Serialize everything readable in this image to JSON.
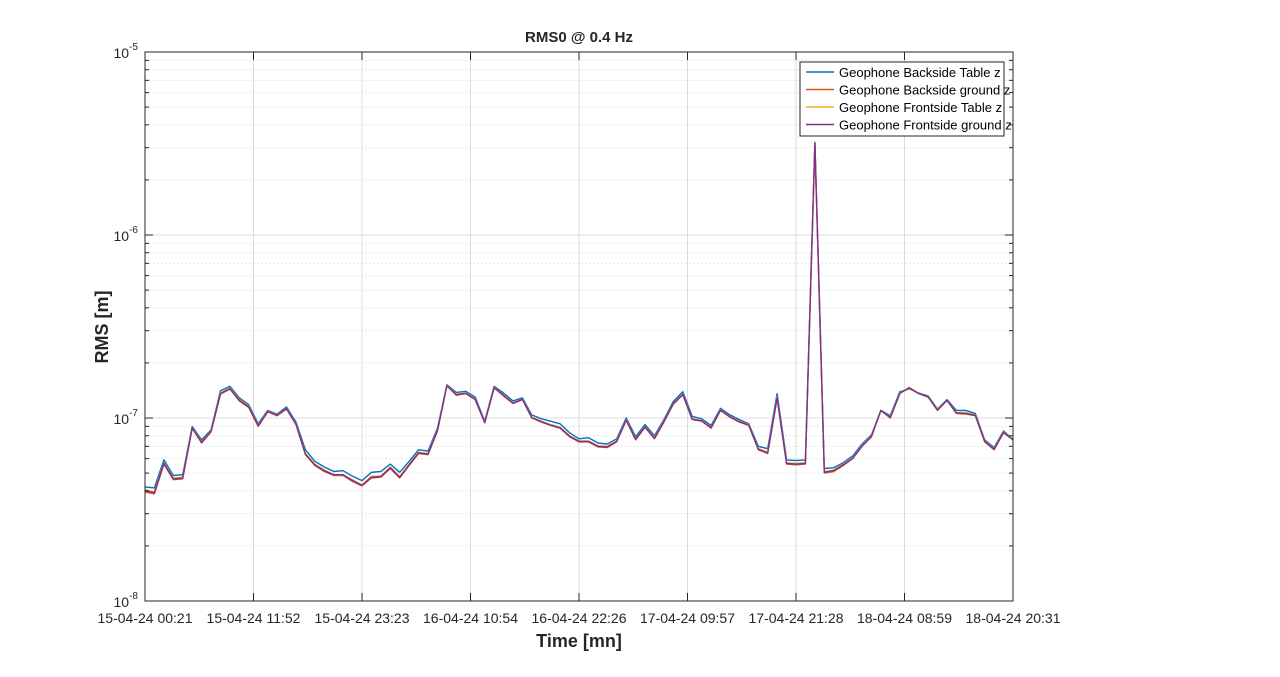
{
  "chart_data": {
    "type": "line",
    "title": "RMS0 @ 0.4 Hz",
    "xlabel": "Time [mn]",
    "ylabel": "RMS [m]",
    "y_scale": "log",
    "ylim": [
      1e-08,
      1e-05
    ],
    "y_ticks": [
      {
        "value": 1e-08,
        "base": "10",
        "exp": "-8"
      },
      {
        "value": 1e-07,
        "base": "10",
        "exp": "-7"
      },
      {
        "value": 1e-06,
        "base": "10",
        "exp": "-6"
      },
      {
        "value": 1e-05,
        "base": "10",
        "exp": "-5"
      }
    ],
    "x_ticks": [
      "15-04-24  00:21",
      "15-04-24  11:52",
      "15-04-24  23:23",
      "16-04-24  10:54",
      "16-04-24  22:26",
      "17-04-24  09:57",
      "17-04-24  21:28",
      "18-04-24  08:59",
      "18-04-24  20:31"
    ],
    "grid": true,
    "legend_position": "top-right",
    "series": [
      {
        "name": "Geophone Backside Table z",
        "color": "#0072BD",
        "values": [
          4.2e-08,
          4.15e-08,
          5.9e-08,
          4.85e-08,
          4.9e-08,
          9e-08,
          7.6e-08,
          8.6e-08,
          1.41e-07,
          1.49e-07,
          1.29e-07,
          1.18e-07,
          9.3e-08,
          1.1e-07,
          1.05e-07,
          1.15e-07,
          9.5e-08,
          6.7e-08,
          5.8e-08,
          5.4e-08,
          5.1e-08,
          5.15e-08,
          4.8e-08,
          4.55e-08,
          5.05e-08,
          5.1e-08,
          5.6e-08,
          5.05e-08,
          5.8e-08,
          6.7e-08,
          6.6e-08,
          8.8e-08,
          1.52e-07,
          1.38e-07,
          1.4e-07,
          1.3e-07,
          9.6e-08,
          1.49e-07,
          1.37e-07,
          1.24e-07,
          1.29e-07,
          1.04e-07,
          9.9e-08,
          9.6e-08,
          9.3e-08,
          8.3e-08,
          7.7e-08,
          7.8e-08,
          7.3e-08,
          7.2e-08,
          7.7e-08,
          1e-07,
          7.9e-08,
          9.2e-08,
          8e-08,
          9.8e-08,
          1.23e-07,
          1.39e-07,
          1.02e-07,
          9.9e-08,
          9.1e-08,
          1.13e-07,
          1.04e-07,
          9.8e-08,
          9.3e-08,
          7e-08,
          6.8e-08,
          1.36e-07,
          5.9e-08,
          5.85e-08,
          5.9e-08,
          3.2e-06,
          5.3e-08,
          5.35e-08,
          5.7e-08,
          6.2e-08,
          7.2e-08,
          8.1e-08,
          1.1e-07,
          1.03e-07,
          1.39e-07,
          1.44e-07,
          1.37e-07,
          1.32e-07,
          1.12e-07,
          1.26e-07,
          1.1e-07,
          1.1e-07,
          1.06e-07,
          7.6e-08,
          6.9e-08,
          8.5e-08,
          7.6e-08
        ]
      },
      {
        "name": "Geophone Backside ground z",
        "color": "#D95319",
        "values": [
          3.95e-08,
          3.85e-08,
          5.6e-08,
          4.6e-08,
          4.65e-08,
          8.8e-08,
          7.3e-08,
          8.4e-08,
          1.35e-07,
          1.44e-07,
          1.24e-07,
          1.14e-07,
          9e-08,
          1.08e-07,
          1.03e-07,
          1.12e-07,
          9.2e-08,
          6.3e-08,
          5.5e-08,
          5.1e-08,
          4.85e-08,
          4.85e-08,
          4.5e-08,
          4.25e-08,
          4.7e-08,
          4.75e-08,
          5.3e-08,
          4.7e-08,
          5.5e-08,
          6.4e-08,
          6.3e-08,
          8.5e-08,
          1.5e-07,
          1.33e-07,
          1.36e-07,
          1.26e-07,
          9.4e-08,
          1.46e-07,
          1.32e-07,
          1.2e-07,
          1.26e-07,
          1e-07,
          9.5e-08,
          9.1e-08,
          8.8e-08,
          7.9e-08,
          7.4e-08,
          7.4e-08,
          6.95e-08,
          6.9e-08,
          7.4e-08,
          9.7e-08,
          7.6e-08,
          8.9e-08,
          7.7e-08,
          9.5e-08,
          1.19e-07,
          1.34e-07,
          9.8e-08,
          9.6e-08,
          8.8e-08,
          1.1e-07,
          1.01e-07,
          9.5e-08,
          9.1e-08,
          6.7e-08,
          6.4e-08,
          1.28e-07,
          5.6e-08,
          5.55e-08,
          5.6e-08,
          3.1e-06,
          5e-08,
          5.1e-08,
          5.5e-08,
          6e-08,
          7e-08,
          7.9e-08,
          1.1e-07,
          1e-07,
          1.36e-07,
          1.47e-07,
          1.36e-07,
          1.3e-07,
          1.1e-07,
          1.25e-07,
          1.06e-07,
          1.05e-07,
          1.03e-07,
          7.4e-08,
          6.7e-08,
          8.3e-08,
          7.6e-08
        ]
      },
      {
        "name": "Geophone Frontside Table z",
        "color": "#EDB120",
        "values": [
          4.05e-08,
          3.95e-08,
          5.7e-08,
          4.7e-08,
          4.75e-08,
          8.9e-08,
          7.4e-08,
          8.5e-08,
          1.37e-07,
          1.46e-07,
          1.26e-07,
          1.16e-07,
          9.1e-08,
          1.09e-07,
          1.04e-07,
          1.13e-07,
          9.3e-08,
          6.4e-08,
          5.6e-08,
          5.2e-08,
          4.9e-08,
          4.9e-08,
          4.6e-08,
          4.3e-08,
          4.8e-08,
          4.8e-08,
          5.4e-08,
          4.8e-08,
          5.6e-08,
          6.5e-08,
          6.4e-08,
          8.6e-08,
          1.51e-07,
          1.35e-07,
          1.37e-07,
          1.27e-07,
          9.5e-08,
          1.47e-07,
          1.34e-07,
          1.21e-07,
          1.27e-07,
          1.01e-07,
          9.6e-08,
          9.2e-08,
          8.9e-08,
          8e-08,
          7.5e-08,
          7.5e-08,
          7.05e-08,
          7e-08,
          7.5e-08,
          9.8e-08,
          7.7e-08,
          9e-08,
          7.8e-08,
          9.6e-08,
          1.2e-07,
          1.35e-07,
          9.9e-08,
          9.7e-08,
          8.9e-08,
          1.11e-07,
          1.02e-07,
          9.6e-08,
          9.2e-08,
          6.8e-08,
          6.5e-08,
          1.3e-07,
          5.7e-08,
          5.65e-08,
          5.7e-08,
          3.15e-06,
          5.1e-08,
          5.2e-08,
          5.6e-08,
          6.05e-08,
          7.05e-08,
          8e-08,
          1.1e-07,
          1.01e-07,
          1.37e-07,
          1.45e-07,
          1.36e-07,
          1.31e-07,
          1.11e-07,
          1.25e-07,
          1.07e-07,
          1.07e-07,
          1.04e-07,
          7.5e-08,
          6.8e-08,
          8.4e-08,
          7.6e-08
        ]
      },
      {
        "name": "Geophone Frontside ground z",
        "color": "#7E2F8E",
        "values": [
          4e-08,
          3.9e-08,
          5.65e-08,
          4.65e-08,
          4.7e-08,
          8.85e-08,
          7.35e-08,
          8.45e-08,
          1.36e-07,
          1.45e-07,
          1.25e-07,
          1.15e-07,
          9.05e-08,
          1.085e-07,
          1.035e-07,
          1.125e-07,
          9.25e-08,
          6.35e-08,
          5.55e-08,
          5.15e-08,
          4.9e-08,
          4.9e-08,
          4.55e-08,
          4.3e-08,
          4.75e-08,
          4.8e-08,
          5.35e-08,
          4.75e-08,
          5.55e-08,
          6.45e-08,
          6.35e-08,
          8.55e-08,
          1.5e-07,
          1.34e-07,
          1.365e-07,
          1.265e-07,
          9.45e-08,
          1.465e-07,
          1.33e-07,
          1.205e-07,
          1.265e-07,
          1.005e-07,
          9.55e-08,
          9.15e-08,
          8.85e-08,
          7.95e-08,
          7.45e-08,
          7.45e-08,
          7e-08,
          6.95e-08,
          7.45e-08,
          9.75e-08,
          7.65e-08,
          8.95e-08,
          7.75e-08,
          9.55e-08,
          1.195e-07,
          1.345e-07,
          9.85e-08,
          9.65e-08,
          8.85e-08,
          1.105e-07,
          1.015e-07,
          9.55e-08,
          9.15e-08,
          6.75e-08,
          6.45e-08,
          1.29e-07,
          5.65e-08,
          5.6e-08,
          5.65e-08,
          3.2e-06,
          5.05e-08,
          5.15e-08,
          5.55e-08,
          6e-08,
          7e-08,
          7.95e-08,
          1.1e-07,
          1.005e-07,
          1.365e-07,
          1.46e-07,
          1.36e-07,
          1.305e-07,
          1.105e-07,
          1.25e-07,
          1.065e-07,
          1.06e-07,
          1.035e-07,
          7.45e-08,
          6.75e-08,
          8.35e-08,
          7.6e-08
        ]
      }
    ]
  }
}
